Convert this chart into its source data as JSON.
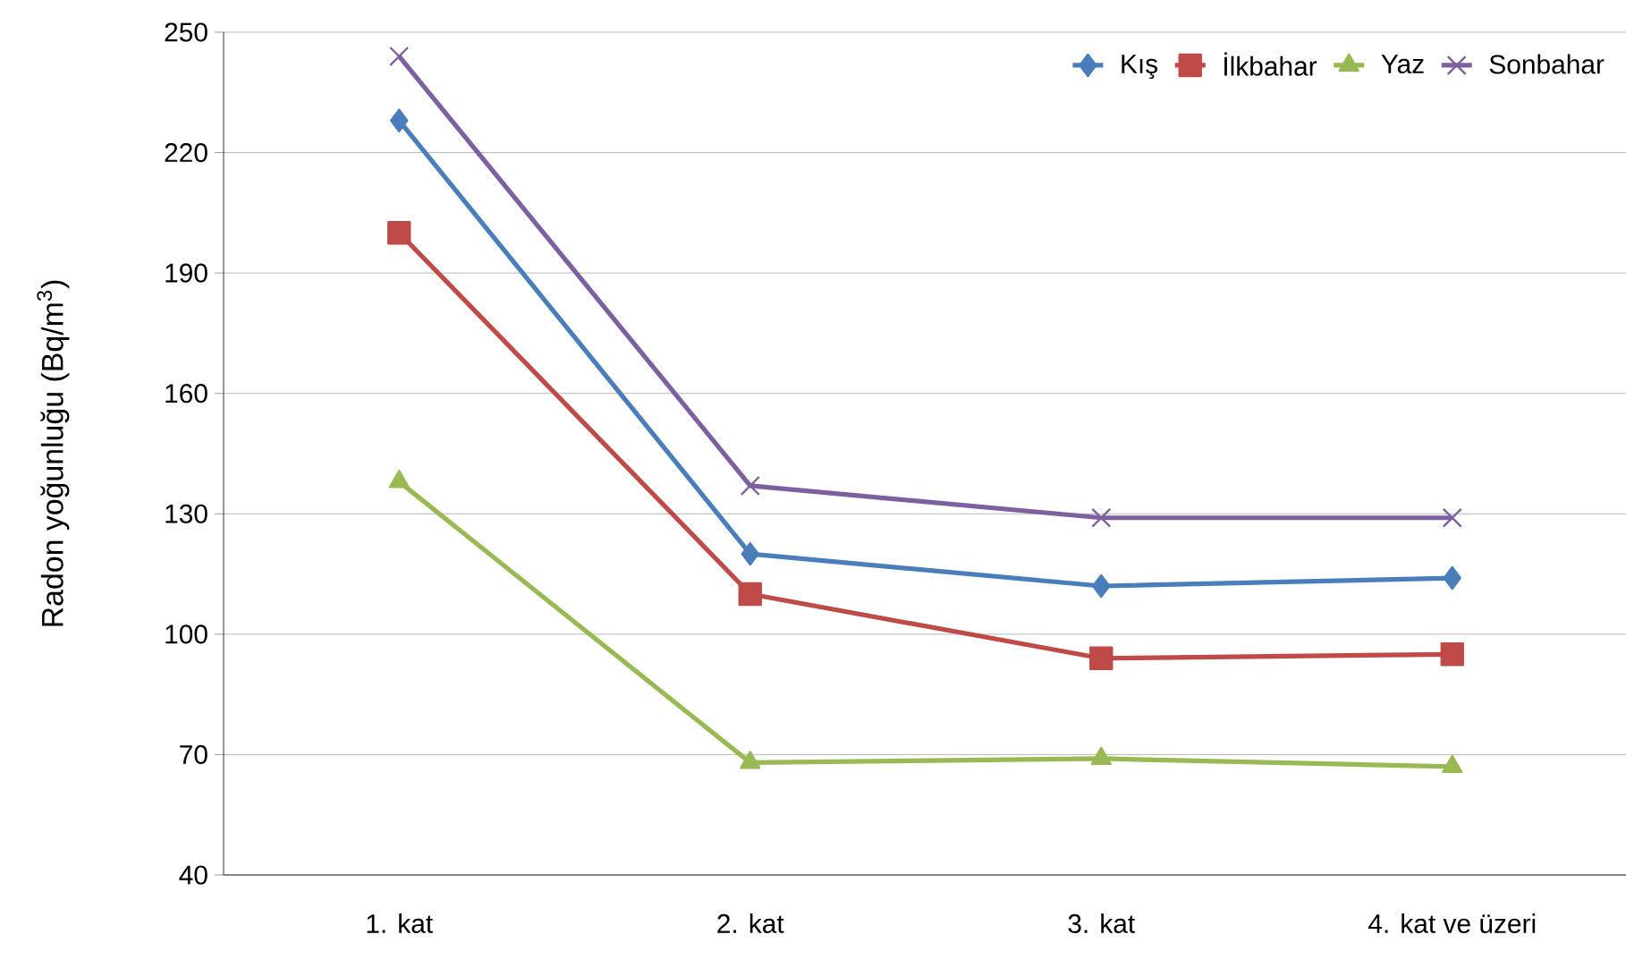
{
  "chart_data": {
    "type": "line",
    "ylabel": "Radon yoğunluğu (Bq/m$^{3}$)",
    "categories": [
      "1. kat",
      "2. kat",
      "3. kat",
      "4. kat ve üzeri"
    ],
    "series": [
      {
        "name": "Kış",
        "color": "#4a7ebb",
        "marker": "diamond",
        "values": [
          228,
          120,
          112,
          114
        ]
      },
      {
        "name": "İlkbahar",
        "color": "#be4b48",
        "marker": "square",
        "values": [
          200,
          110,
          94,
          95
        ]
      },
      {
        "name": "Yaz",
        "color": "#98b954",
        "marker": "triangle",
        "values": [
          138,
          68,
          69,
          67
        ]
      },
      {
        "name": "Sonbahar",
        "color": "#7d60a0",
        "marker": "cross",
        "values": [
          244,
          137,
          129,
          129
        ]
      }
    ],
    "ylim": [
      40,
      250
    ],
    "yticks": [
      40,
      70,
      100,
      130,
      160,
      190,
      220,
      250
    ],
    "grid": "y",
    "legend": "top right"
  }
}
